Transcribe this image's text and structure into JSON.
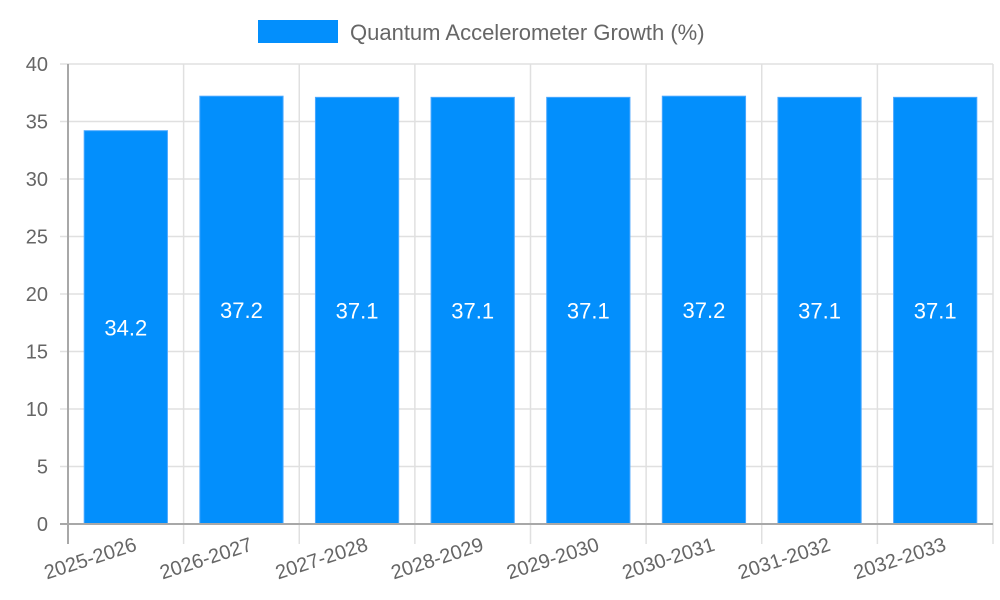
{
  "legend": {
    "label": "Quantum Accelerometer Growth (%)",
    "color": "#038ffc"
  },
  "colors": {
    "bar_fill": "#038ffc",
    "bar_border": "#4aa8ff",
    "grid": "#e0e0e0",
    "axis": "#a8a8a8",
    "text": "#666666",
    "bar_label": "#ffffff"
  },
  "chart_data": {
    "type": "bar",
    "title": "",
    "xlabel": "",
    "ylabel": "",
    "categories": [
      "2025-2026",
      "2026-2027",
      "2027-2028",
      "2028-2029",
      "2029-2030",
      "2030-2031",
      "2031-2032",
      "2032-2033"
    ],
    "series": [
      {
        "name": "Quantum Accelerometer Growth (%)",
        "values": [
          34.2,
          37.2,
          37.1,
          37.1,
          37.1,
          37.2,
          37.1,
          37.1
        ]
      }
    ],
    "data_labels": [
      "34.2",
      "37.2",
      "37.1",
      "37.1",
      "37.1",
      "37.2",
      "37.1",
      "37.1"
    ],
    "ylim": [
      0,
      40
    ],
    "yticks": [
      0,
      5,
      10,
      15,
      20,
      25,
      30,
      35,
      40
    ],
    "grid": true,
    "legend_position": "top"
  }
}
